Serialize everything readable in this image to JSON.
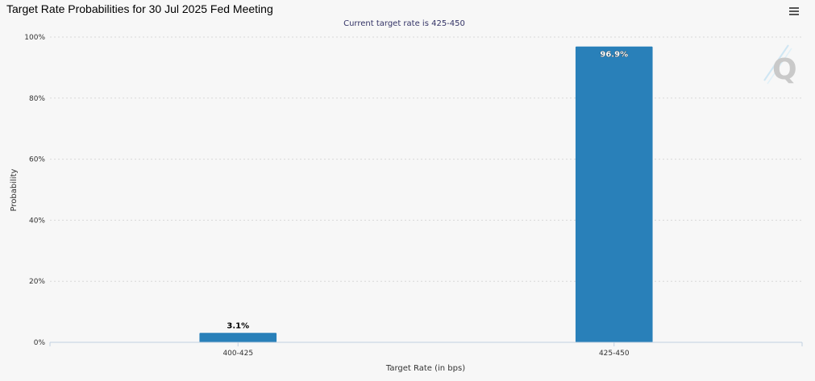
{
  "menu": {
    "icon": "hamburger-menu-icon"
  },
  "watermark": {
    "icon": "q-logo-icon"
  },
  "colors": {
    "bar": "#2980b9",
    "grid": "#d8d8d8",
    "axis": "#c0d0e0"
  },
  "chart_data": {
    "type": "bar",
    "title": "Target Rate Probabilities for 30 Jul 2025 Fed Meeting",
    "subtitle": "Current target rate is 425-450",
    "xlabel": "Target Rate (in bps)",
    "ylabel": "Probability",
    "categories": [
      "400-425",
      "425-450"
    ],
    "values": [
      3.1,
      96.9
    ],
    "data_labels": [
      "3.1%",
      "96.9%"
    ],
    "ylim": [
      0,
      100
    ],
    "yticks": [
      0,
      20,
      40,
      60,
      80,
      100
    ],
    "ytick_labels": [
      "0%",
      "20%",
      "40%",
      "60%",
      "80%",
      "100%"
    ],
    "grid": true,
    "legend": "none"
  }
}
